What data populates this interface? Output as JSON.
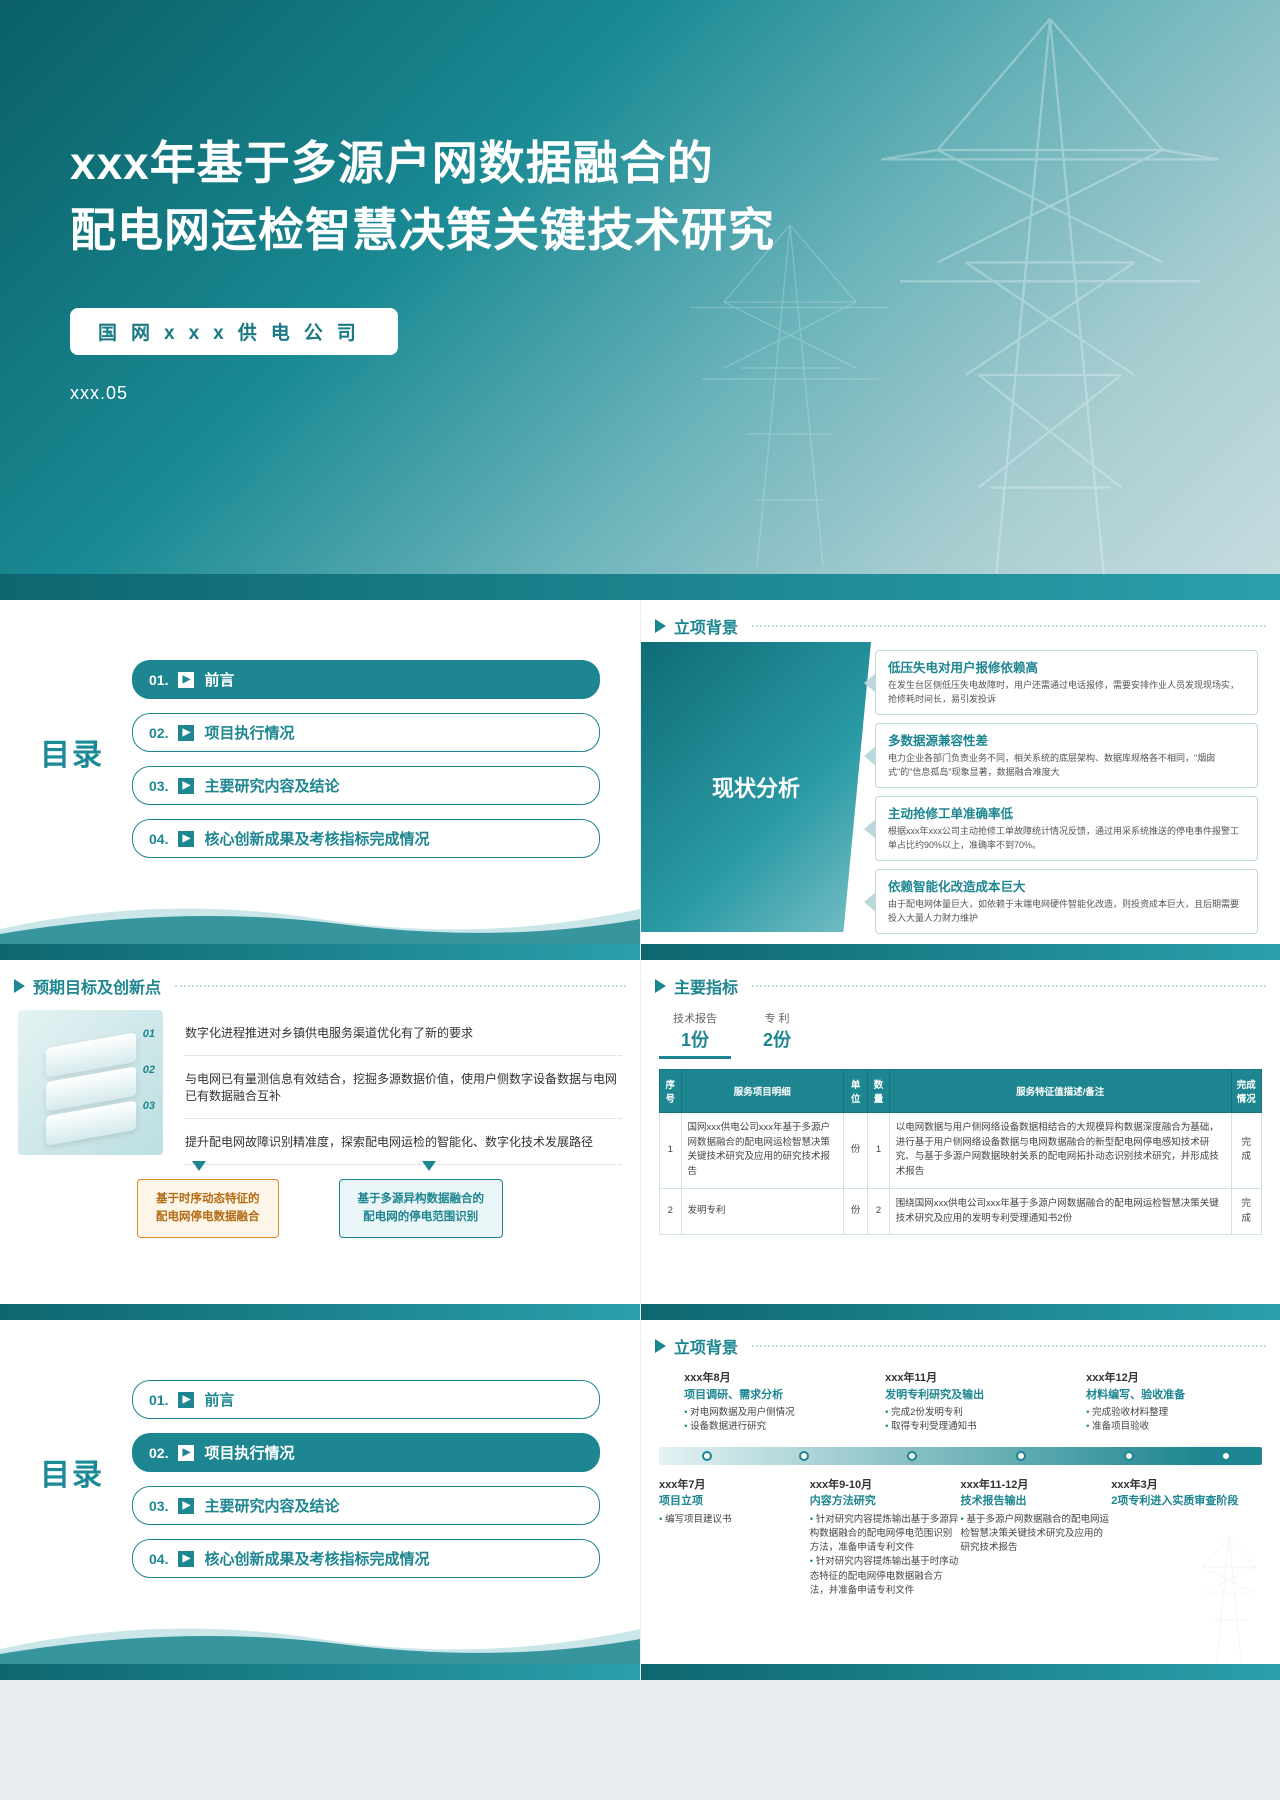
{
  "colors": {
    "primary": "#1d8690",
    "primary_dark": "#0d6670",
    "primary_light": "#2aa0ab",
    "accent_orange": "#d58a2a",
    "accent_orange_bg": "#fdf6e8",
    "text": "#333333",
    "muted": "#666666",
    "border": "#bcd8db",
    "bg": "#ffffff"
  },
  "title_slide": {
    "line1": "xxx年基于多源户网数据融合的",
    "line2": "配电网运检智慧决策关键技术研究",
    "company": "国网xxx供电公司",
    "date": "xxx.05"
  },
  "toc": {
    "label": "目录",
    "items": [
      {
        "num": "01.",
        "text": "前言"
      },
      {
        "num": "02.",
        "text": "项目执行情况"
      },
      {
        "num": "03.",
        "text": "主要研究内容及结论"
      },
      {
        "num": "04.",
        "text": "核心创新成果及考核指标完成情况"
      }
    ],
    "active_a": 0,
    "active_b": 1
  },
  "analysis": {
    "section": "立项背景",
    "left_title": "现状分析",
    "cards": [
      {
        "title": "低压失电对用户报修依赖高",
        "body": "在发生台区侧低压失电故障时，用户还需通过电话报修，需要安排作业人员发现现场实，抢修耗时间长，易引发投诉"
      },
      {
        "title": "多数据源兼容性差",
        "body": "电力企业各部门负责业务不同，相关系统的底层架构、数据库规格各不相同，\"烟囱式\"的\"信息孤岛\"现象显著，数据融合难度大"
      },
      {
        "title": "主动抢修工单准确率低",
        "body": "根据xxx年xxx公司主动抢修工单故障统计情况反馈，通过用采系统推送的停电事件报警工单占比约90%以上，准确率不到70%。"
      },
      {
        "title": "依赖智能化改造成本巨大",
        "body": "由于配电网体量巨大，如依赖于末端电网硬件智能化改造，则投资成本巨大，且后期需要投入大量人力财力维护"
      }
    ]
  },
  "goals": {
    "section": "预期目标及创新点",
    "lines": [
      "数字化进程推进对乡镇供电服务渠道优化有了新的要求",
      "与电网已有量测信息有效结合，挖掘多源数据价值，使用户侧数字设备数据与电网已有数据融合互补",
      "提升配电网故障识别精准度，探索配电网运检的智能化、数字化技术发展路径"
    ],
    "img_nums": [
      "01",
      "02",
      "03"
    ],
    "boxes": [
      "基于时序动态特征的\n配电网停电数据融合",
      "基于多源异构数据融合的\n配电网的停电范围识别"
    ]
  },
  "metrics": {
    "section": "主要指标",
    "tabs": [
      {
        "label": "技术报告",
        "count": "1份"
      },
      {
        "label": "专 利",
        "count": "2份"
      }
    ],
    "headers": [
      "序号",
      "服务项目明细",
      "单位",
      "数量",
      "服务特征值描述/备注",
      "完成情况"
    ],
    "rows": [
      {
        "no": "1",
        "name": "国网xxx供电公司xxx年基于多源户网数据融合的配电网运检智慧决策关键技术研究及应用的研究技术报告",
        "unit": "份",
        "qty": "1",
        "desc": "以电网数据与用户侧网络设备数据相结合的大规模异构数据深度融合为基础，进行基于用户侧网络设备数据与电网数据融合的新型配电网停电感知技术研究、与基于多源户网数据映射关系的配电网拓扑动态识别技术研究，并形成技术报告",
        "status": "完成"
      },
      {
        "no": "2",
        "name": "发明专利",
        "unit": "份",
        "qty": "2",
        "desc": "围绕国网xxx供电公司xxx年基于多源户网数据融合的配电网运检智慧决策关键技术研究及应用的发明专利受理通知书2份",
        "status": "完成"
      }
    ]
  },
  "timeline": {
    "section": "立项背景",
    "top": [
      {
        "date": "xxx年8月",
        "title": "项目调研、需求分析",
        "items": [
          "对电网数据及用户侧情况",
          "设备数据进行研究"
        ]
      },
      {
        "date": "xxx年11月",
        "title": "发明专利研究及输出",
        "items": [
          "完成2份发明专利",
          "取得专利受理通知书"
        ]
      },
      {
        "date": "xxx年12月",
        "title": "材料编写、验收准备",
        "items": [
          "完成验收材料整理",
          "准备项目验收"
        ]
      }
    ],
    "bar_dots": [
      8,
      24,
      42,
      60,
      78,
      94
    ],
    "bottom": [
      {
        "date": "xxx年7月",
        "title": "项目立项",
        "items": [
          "编写项目建议书"
        ]
      },
      {
        "date": "xxx年9-10月",
        "title": "内容方法研究",
        "items": [
          "针对研究内容提炼输出基于多源异构数据融合的配电网停电范围识别方法，准备申请专利文件",
          "针对研究内容提炼输出基于时序动态特征的配电网停电数据融合方法，并准备申请专利文件"
        ]
      },
      {
        "date": "xxx年11-12月",
        "title": "技术报告输出",
        "items": [
          "基于多源户网数据融合的配电网运检智慧决策关键技术研究及应用的研究技术报告"
        ]
      },
      {
        "date": "xxx年3月",
        "title": "2项专利进入实质审查阶段",
        "items": []
      }
    ]
  }
}
